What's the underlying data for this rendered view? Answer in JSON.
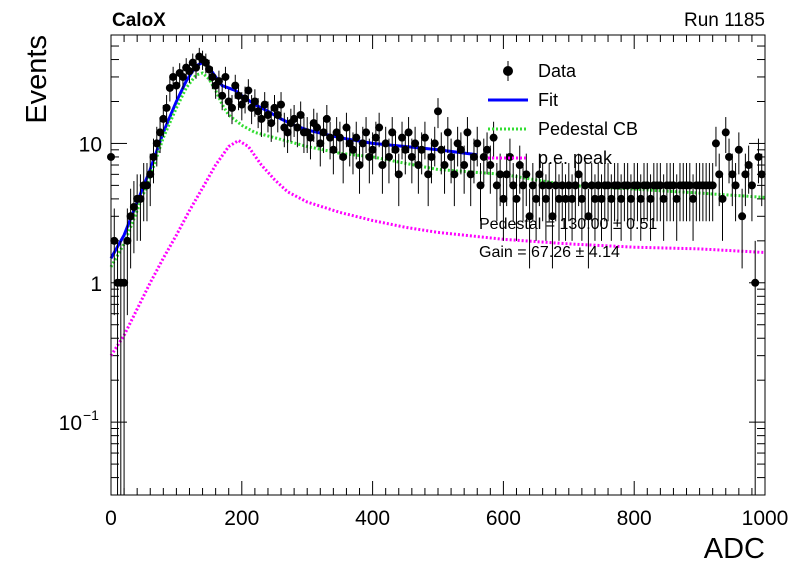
{
  "header": {
    "experiment": "CaloX",
    "run": "Run 1185"
  },
  "chart_data": {
    "type": "scatter",
    "xlabel": "ADC",
    "ylabel": "Events",
    "xlim": [
      0,
      1000
    ],
    "ylim": [
      0.03,
      60
    ],
    "yscale": "log",
    "x_ticks": [
      "0",
      "200",
      "400",
      "600",
      "800",
      "1000"
    ],
    "y_ticks": [
      {
        "value": 0.1,
        "base": "10",
        "exp": "−1"
      },
      {
        "value": 1,
        "base": "1",
        "exp": ""
      },
      {
        "value": 10,
        "base": "10",
        "exp": ""
      }
    ],
    "legend": {
      "position": "top-right",
      "entries": [
        {
          "label": "Data",
          "style": "marker",
          "color": "#000000"
        },
        {
          "label": "Fit",
          "style": "solid",
          "color": "#0000ff"
        },
        {
          "label": "Pedestal CB",
          "style": "dotted",
          "color": "#33dd33"
        },
        {
          "label": "p.e. peak",
          "style": "dotted",
          "color": "#ff00ff"
        }
      ]
    },
    "annotations": [
      "Pedestal = 130.00 ± 0.51",
      "Gain = 67.26 ± 4.14"
    ],
    "series": [
      {
        "name": "Data",
        "points": [
          [
            0,
            8
          ],
          [
            5,
            2
          ],
          [
            10,
            1
          ],
          [
            15,
            1
          ],
          [
            20,
            1
          ],
          [
            25,
            2
          ],
          [
            30,
            3
          ],
          [
            35,
            3.5
          ],
          [
            40,
            4
          ],
          [
            45,
            4
          ],
          [
            50,
            5
          ],
          [
            55,
            5
          ],
          [
            60,
            6
          ],
          [
            65,
            8
          ],
          [
            70,
            10
          ],
          [
            75,
            12
          ],
          [
            80,
            15
          ],
          [
            85,
            18
          ],
          [
            90,
            25
          ],
          [
            95,
            30
          ],
          [
            100,
            26
          ],
          [
            105,
            32
          ],
          [
            110,
            30
          ],
          [
            115,
            35
          ],
          [
            120,
            33
          ],
          [
            125,
            38
          ],
          [
            130,
            35
          ],
          [
            135,
            42
          ],
          [
            140,
            40
          ],
          [
            145,
            38
          ],
          [
            150,
            34
          ],
          [
            155,
            30
          ],
          [
            160,
            26
          ],
          [
            165,
            28
          ],
          [
            170,
            22
          ],
          [
            175,
            30
          ],
          [
            180,
            20
          ],
          [
            185,
            18
          ],
          [
            190,
            26
          ],
          [
            195,
            22
          ],
          [
            200,
            19
          ],
          [
            205,
            21
          ],
          [
            210,
            24
          ],
          [
            215,
            18
          ],
          [
            220,
            20
          ],
          [
            225,
            17
          ],
          [
            230,
            15
          ],
          [
            235,
            19
          ],
          [
            240,
            16
          ],
          [
            245,
            14
          ],
          [
            250,
            18
          ],
          [
            255,
            16
          ],
          [
            260,
            19
          ],
          [
            265,
            13
          ],
          [
            270,
            12
          ],
          [
            275,
            14
          ],
          [
            280,
            15
          ],
          [
            285,
            13
          ],
          [
            290,
            16
          ],
          [
            295,
            12
          ],
          [
            300,
            12
          ],
          [
            305,
            11
          ],
          [
            310,
            14
          ],
          [
            315,
            13
          ],
          [
            320,
            10
          ],
          [
            325,
            12
          ],
          [
            330,
            15
          ],
          [
            335,
            11
          ],
          [
            340,
            9
          ],
          [
            345,
            12
          ],
          [
            350,
            11
          ],
          [
            355,
            8
          ],
          [
            360,
            13
          ],
          [
            365,
            10
          ],
          [
            370,
            9
          ],
          [
            375,
            11
          ],
          [
            380,
            7
          ],
          [
            385,
            10
          ],
          [
            390,
            12
          ],
          [
            395,
            8
          ],
          [
            400,
            9
          ],
          [
            405,
            11
          ],
          [
            410,
            13
          ],
          [
            415,
            7
          ],
          [
            420,
            10
          ],
          [
            425,
            8
          ],
          [
            430,
            12
          ],
          [
            435,
            9
          ],
          [
            440,
            6
          ],
          [
            445,
            11
          ],
          [
            450,
            9
          ],
          [
            455,
            12
          ],
          [
            460,
            8
          ],
          [
            465,
            10
          ],
          [
            470,
            7
          ],
          [
            475,
            9
          ],
          [
            480,
            11
          ],
          [
            485,
            6
          ],
          [
            490,
            8
          ],
          [
            495,
            10
          ],
          [
            500,
            17
          ],
          [
            505,
            9
          ],
          [
            510,
            7
          ],
          [
            515,
            12
          ],
          [
            520,
            8
          ],
          [
            525,
            6
          ],
          [
            530,
            10
          ],
          [
            535,
            9
          ],
          [
            540,
            7
          ],
          [
            545,
            12
          ],
          [
            550,
            6
          ],
          [
            555,
            8
          ],
          [
            560,
            10
          ],
          [
            565,
            5
          ],
          [
            570,
            8
          ],
          [
            575,
            9
          ],
          [
            580,
            7
          ],
          [
            585,
            11
          ],
          [
            590,
            5
          ],
          [
            595,
            6
          ],
          [
            600,
            4
          ],
          [
            605,
            6
          ],
          [
            610,
            8
          ],
          [
            615,
            5
          ],
          [
            620,
            4
          ],
          [
            625,
            7
          ],
          [
            630,
            5
          ],
          [
            635,
            6
          ],
          [
            640,
            3
          ],
          [
            645,
            5
          ],
          [
            650,
            4
          ],
          [
            655,
            6
          ],
          [
            660,
            5
          ],
          [
            665,
            4
          ],
          [
            670,
            5
          ],
          [
            675,
            3
          ],
          [
            680,
            5
          ],
          [
            685,
            4
          ],
          [
            690,
            5
          ],
          [
            695,
            4
          ],
          [
            700,
            5
          ],
          [
            705,
            4
          ],
          [
            710,
            5
          ],
          [
            715,
            6
          ],
          [
            720,
            4
          ],
          [
            725,
            5
          ],
          [
            730,
            3
          ],
          [
            735,
            5
          ],
          [
            740,
            4
          ],
          [
            745,
            5
          ],
          [
            750,
            4
          ],
          [
            755,
            5
          ],
          [
            760,
            5
          ],
          [
            765,
            4
          ],
          [
            770,
            5
          ],
          [
            775,
            5
          ],
          [
            780,
            4
          ],
          [
            785,
            5
          ],
          [
            790,
            5
          ],
          [
            795,
            4
          ],
          [
            800,
            5
          ],
          [
            805,
            5
          ],
          [
            810,
            4
          ],
          [
            815,
            5
          ],
          [
            820,
            5
          ],
          [
            825,
            4
          ],
          [
            830,
            5
          ],
          [
            835,
            5
          ],
          [
            840,
            5
          ],
          [
            845,
            4
          ],
          [
            850,
            5
          ],
          [
            855,
            5
          ],
          [
            860,
            5
          ],
          [
            865,
            4
          ],
          [
            870,
            5
          ],
          [
            875,
            5
          ],
          [
            880,
            5
          ],
          [
            885,
            5
          ],
          [
            890,
            4
          ],
          [
            895,
            5
          ],
          [
            900,
            5
          ],
          [
            905,
            5
          ],
          [
            910,
            5
          ],
          [
            915,
            5
          ],
          [
            920,
            5
          ],
          [
            925,
            10
          ],
          [
            930,
            6
          ],
          [
            935,
            4
          ],
          [
            940,
            12
          ],
          [
            945,
            8
          ],
          [
            950,
            6
          ],
          [
            955,
            5
          ],
          [
            960,
            9
          ],
          [
            965,
            3
          ],
          [
            970,
            6
          ],
          [
            975,
            7
          ],
          [
            980,
            5
          ],
          [
            985,
            1
          ],
          [
            990,
            8
          ],
          [
            995,
            6
          ]
        ]
      },
      {
        "name": "Fit",
        "points": [
          [
            0,
            1.5
          ],
          [
            20,
            2.2
          ],
          [
            40,
            3.8
          ],
          [
            60,
            6.5
          ],
          [
            80,
            12
          ],
          [
            100,
            20
          ],
          [
            115,
            28
          ],
          [
            130,
            36
          ],
          [
            140,
            38
          ],
          [
            150,
            35
          ],
          [
            160,
            30
          ],
          [
            170,
            26
          ],
          [
            180,
            25
          ],
          [
            190,
            24
          ],
          [
            200,
            22
          ],
          [
            220,
            19
          ],
          [
            240,
            17
          ],
          [
            260,
            15
          ],
          [
            280,
            13.5
          ],
          [
            300,
            12.5
          ],
          [
            350,
            11
          ],
          [
            400,
            10
          ],
          [
            450,
            9.5
          ],
          [
            500,
            9
          ],
          [
            560,
            8.3
          ]
        ]
      },
      {
        "name": "Pedestal CB",
        "points": [
          [
            0,
            1.3
          ],
          [
            20,
            1.9
          ],
          [
            40,
            3.3
          ],
          [
            60,
            5.8
          ],
          [
            80,
            11
          ],
          [
            100,
            18
          ],
          [
            115,
            25
          ],
          [
            130,
            31
          ],
          [
            140,
            32
          ],
          [
            150,
            29
          ],
          [
            160,
            24
          ],
          [
            170,
            19
          ],
          [
            180,
            16
          ],
          [
            200,
            13.5
          ],
          [
            220,
            12
          ],
          [
            250,
            11
          ],
          [
            300,
            9.5
          ],
          [
            350,
            8.5
          ],
          [
            400,
            8
          ],
          [
            450,
            7.2
          ],
          [
            500,
            6.5
          ],
          [
            600,
            6
          ],
          [
            700,
            5
          ],
          [
            800,
            4.7
          ],
          [
            900,
            4.4
          ],
          [
            1000,
            4.1
          ]
        ]
      },
      {
        "name": "p.e. peak",
        "points": [
          [
            0,
            0.3
          ],
          [
            20,
            0.42
          ],
          [
            40,
            0.65
          ],
          [
            60,
            1
          ],
          [
            80,
            1.5
          ],
          [
            100,
            2.2
          ],
          [
            120,
            3.3
          ],
          [
            140,
            4.8
          ],
          [
            160,
            7
          ],
          [
            180,
            9.5
          ],
          [
            195,
            10.5
          ],
          [
            210,
            9.5
          ],
          [
            230,
            7
          ],
          [
            250,
            5.5
          ],
          [
            270,
            4.5
          ],
          [
            300,
            3.8
          ],
          [
            350,
            3.2
          ],
          [
            400,
            2.8
          ],
          [
            450,
            2.5
          ],
          [
            500,
            2.3
          ],
          [
            600,
            2.05
          ],
          [
            700,
            1.9
          ],
          [
            800,
            1.8
          ],
          [
            900,
            1.75
          ],
          [
            1000,
            1.65
          ]
        ]
      }
    ]
  }
}
